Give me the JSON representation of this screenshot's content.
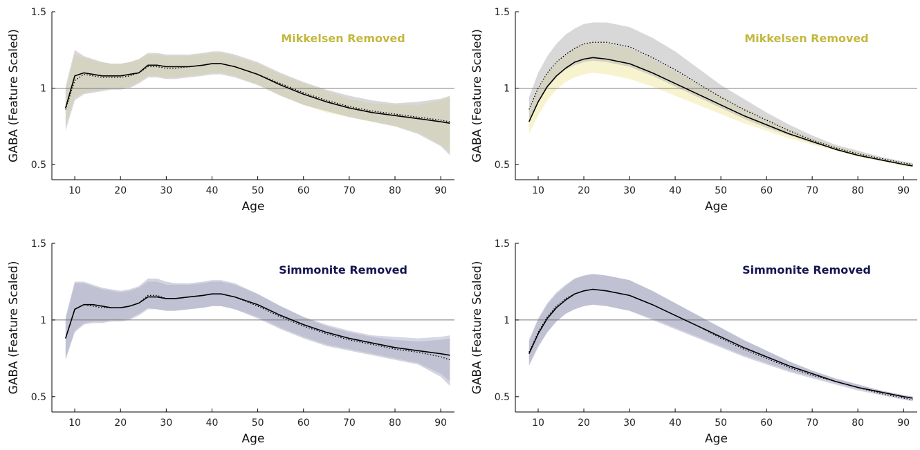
{
  "chart_data": [
    {
      "type": "line",
      "annotation": "Mikkelsen Removed",
      "annotation_color": "#c2b83e",
      "band_colors": [
        "#f5eeba",
        "#b8b8b8"
      ],
      "xlabel": "Age",
      "ylabel": "GABA (Feature Scaled)",
      "xlim": [
        5,
        93
      ],
      "ylim": [
        0.4,
        1.5
      ],
      "xticks": [
        "10",
        "20",
        "30",
        "40",
        "50",
        "60",
        "70",
        "80",
        "90"
      ],
      "yticks": [
        "0.5",
        "1",
        "1.5"
      ],
      "reference_line": 1,
      "x": [
        8,
        10,
        12,
        14,
        16,
        18,
        20,
        22,
        24,
        26,
        28,
        30,
        32,
        35,
        38,
        40,
        42,
        45,
        50,
        55,
        60,
        65,
        70,
        75,
        80,
        85,
        90,
        92
      ],
      "series": [
        {
          "style": "solid",
          "values": [
            0.87,
            1.08,
            1.1,
            1.09,
            1.08,
            1.08,
            1.08,
            1.09,
            1.1,
            1.15,
            1.15,
            1.14,
            1.14,
            1.14,
            1.15,
            1.16,
            1.16,
            1.14,
            1.09,
            1.02,
            0.96,
            0.91,
            0.87,
            0.84,
            0.82,
            0.8,
            0.78,
            0.77
          ],
          "lower": [
            0.75,
            0.94,
            0.97,
            0.98,
            0.99,
            1.0,
            1.0,
            1.01,
            1.04,
            1.08,
            1.08,
            1.07,
            1.07,
            1.08,
            1.09,
            1.1,
            1.1,
            1.08,
            1.02,
            0.95,
            0.89,
            0.84,
            0.81,
            0.78,
            0.75,
            0.71,
            0.63,
            0.58
          ],
          "upper": [
            0.98,
            1.22,
            1.2,
            1.18,
            1.17,
            1.16,
            1.16,
            1.17,
            1.19,
            1.22,
            1.22,
            1.21,
            1.21,
            1.21,
            1.22,
            1.23,
            1.23,
            1.21,
            1.16,
            1.09,
            1.03,
            0.98,
            0.93,
            0.9,
            0.89,
            0.89,
            0.92,
            0.94
          ]
        },
        {
          "style": "dotted",
          "values": [
            0.86,
            1.05,
            1.09,
            1.08,
            1.07,
            1.07,
            1.07,
            1.08,
            1.1,
            1.14,
            1.14,
            1.13,
            1.13,
            1.14,
            1.15,
            1.16,
            1.16,
            1.14,
            1.09,
            1.03,
            0.97,
            0.92,
            0.88,
            0.85,
            0.83,
            0.81,
            0.79,
            0.78
          ],
          "lower": [
            0.72,
            0.92,
            0.96,
            0.97,
            0.98,
            0.99,
            0.99,
            1.0,
            1.03,
            1.07,
            1.07,
            1.06,
            1.06,
            1.07,
            1.08,
            1.09,
            1.09,
            1.07,
            1.02,
            0.95,
            0.89,
            0.85,
            0.81,
            0.78,
            0.75,
            0.7,
            0.62,
            0.56
          ],
          "upper": [
            1.01,
            1.25,
            1.21,
            1.19,
            1.17,
            1.16,
            1.16,
            1.17,
            1.19,
            1.23,
            1.23,
            1.22,
            1.22,
            1.22,
            1.23,
            1.24,
            1.24,
            1.22,
            1.17,
            1.1,
            1.04,
            0.99,
            0.95,
            0.92,
            0.9,
            0.91,
            0.93,
            0.95
          ]
        }
      ]
    },
    {
      "type": "line",
      "annotation": "Mikkelsen Removed",
      "annotation_color": "#c2b83e",
      "band_colors": [
        "#f5eeba",
        "#b8b8b8"
      ],
      "xlabel": "Age",
      "ylabel": "GABA (Feature Scaled)",
      "xlim": [
        5,
        93
      ],
      "ylim": [
        0.4,
        1.5
      ],
      "xticks": [
        "10",
        "20",
        "30",
        "40",
        "50",
        "60",
        "70",
        "80",
        "90"
      ],
      "yticks": [
        "0.5",
        "1",
        "1.5"
      ],
      "reference_line": 1,
      "x": [
        8,
        10,
        12,
        14,
        16,
        18,
        20,
        22,
        25,
        30,
        35,
        40,
        45,
        50,
        55,
        60,
        65,
        70,
        75,
        80,
        85,
        90,
        92
      ],
      "series": [
        {
          "style": "solid",
          "values": [
            0.78,
            0.91,
            1.01,
            1.08,
            1.13,
            1.17,
            1.19,
            1.2,
            1.19,
            1.16,
            1.1,
            1.03,
            0.96,
            0.89,
            0.82,
            0.76,
            0.7,
            0.65,
            0.6,
            0.56,
            0.53,
            0.5,
            0.49
          ],
          "lower": [
            0.7,
            0.82,
            0.92,
            0.99,
            1.04,
            1.07,
            1.09,
            1.1,
            1.09,
            1.06,
            1.01,
            0.95,
            0.89,
            0.83,
            0.77,
            0.72,
            0.67,
            0.63,
            0.59,
            0.55,
            0.52,
            0.49,
            0.48
          ],
          "upper": [
            0.86,
            1.0,
            1.1,
            1.17,
            1.22,
            1.27,
            1.29,
            1.3,
            1.29,
            1.26,
            1.19,
            1.11,
            1.03,
            0.95,
            0.87,
            0.8,
            0.73,
            0.67,
            0.62,
            0.58,
            0.54,
            0.51,
            0.5
          ]
        },
        {
          "style": "dotted",
          "values": [
            0.86,
            1.0,
            1.1,
            1.17,
            1.22,
            1.26,
            1.29,
            1.3,
            1.3,
            1.27,
            1.2,
            1.12,
            1.03,
            0.94,
            0.86,
            0.79,
            0.72,
            0.66,
            0.61,
            0.57,
            0.54,
            0.51,
            0.5
          ],
          "lower": [
            0.78,
            0.91,
            1.0,
            1.07,
            1.12,
            1.15,
            1.17,
            1.18,
            1.17,
            1.14,
            1.08,
            1.01,
            0.94,
            0.87,
            0.8,
            0.74,
            0.69,
            0.64,
            0.6,
            0.56,
            0.53,
            0.5,
            0.49
          ],
          "upper": [
            0.94,
            1.1,
            1.21,
            1.29,
            1.35,
            1.39,
            1.42,
            1.43,
            1.43,
            1.4,
            1.33,
            1.24,
            1.13,
            1.02,
            0.93,
            0.84,
            0.76,
            0.69,
            0.63,
            0.59,
            0.55,
            0.52,
            0.51
          ]
        }
      ]
    },
    {
      "type": "line",
      "annotation": "Simmonite Removed",
      "annotation_color": "#151550",
      "band_colors": [
        "#c4c4d8",
        "#b0b0c6"
      ],
      "xlabel": "Age",
      "ylabel": "GABA (Feature Scaled)",
      "xlim": [
        5,
        93
      ],
      "ylim": [
        0.4,
        1.5
      ],
      "xticks": [
        "10",
        "20",
        "30",
        "40",
        "50",
        "60",
        "70",
        "80",
        "90"
      ],
      "yticks": [
        "0.5",
        "1",
        "1.5"
      ],
      "reference_line": 1,
      "x": [
        8,
        10,
        12,
        14,
        16,
        18,
        20,
        22,
        24,
        26,
        28,
        30,
        32,
        35,
        38,
        40,
        42,
        45,
        50,
        55,
        60,
        65,
        70,
        75,
        80,
        85,
        90,
        92
      ],
      "series": [
        {
          "style": "solid",
          "values": [
            0.88,
            1.07,
            1.1,
            1.1,
            1.09,
            1.08,
            1.08,
            1.09,
            1.11,
            1.15,
            1.15,
            1.14,
            1.14,
            1.15,
            1.16,
            1.17,
            1.17,
            1.15,
            1.1,
            1.03,
            0.97,
            0.92,
            0.88,
            0.85,
            0.82,
            0.8,
            0.78,
            0.77
          ],
          "lower": [
            0.75,
            0.93,
            0.98,
            0.99,
            0.99,
            1.0,
            1.0,
            1.01,
            1.04,
            1.08,
            1.07,
            1.06,
            1.06,
            1.07,
            1.08,
            1.09,
            1.09,
            1.07,
            1.02,
            0.95,
            0.89,
            0.84,
            0.81,
            0.78,
            0.75,
            0.72,
            0.65,
            0.6
          ],
          "upper": [
            1.0,
            1.24,
            1.24,
            1.22,
            1.2,
            1.19,
            1.18,
            1.19,
            1.21,
            1.25,
            1.25,
            1.23,
            1.23,
            1.23,
            1.24,
            1.25,
            1.25,
            1.23,
            1.17,
            1.09,
            1.02,
            0.97,
            0.93,
            0.9,
            0.89,
            0.88,
            0.89,
            0.9
          ]
        },
        {
          "style": "dotted",
          "values": [
            0.88,
            1.07,
            1.1,
            1.09,
            1.08,
            1.08,
            1.08,
            1.09,
            1.11,
            1.16,
            1.16,
            1.14,
            1.14,
            1.15,
            1.16,
            1.17,
            1.17,
            1.15,
            1.09,
            1.02,
            0.96,
            0.91,
            0.87,
            0.84,
            0.81,
            0.79,
            0.76,
            0.74
          ],
          "lower": [
            0.74,
            0.92,
            0.97,
            0.98,
            0.98,
            0.99,
            0.99,
            1.0,
            1.03,
            1.07,
            1.07,
            1.06,
            1.06,
            1.07,
            1.08,
            1.09,
            1.09,
            1.07,
            1.01,
            0.94,
            0.88,
            0.83,
            0.8,
            0.77,
            0.74,
            0.71,
            0.63,
            0.57
          ],
          "upper": [
            1.02,
            1.25,
            1.25,
            1.23,
            1.21,
            1.2,
            1.19,
            1.2,
            1.22,
            1.27,
            1.27,
            1.25,
            1.24,
            1.24,
            1.25,
            1.26,
            1.26,
            1.24,
            1.17,
            1.09,
            1.02,
            0.96,
            0.92,
            0.89,
            0.87,
            0.86,
            0.87,
            0.88
          ]
        }
      ]
    },
    {
      "type": "line",
      "annotation": "Simmonite Removed",
      "annotation_color": "#151550",
      "band_colors": [
        "#c4c4d8",
        "#b0b0c6"
      ],
      "xlabel": "Age",
      "ylabel": "GABA (Feature Scaled)",
      "xlim": [
        5,
        93
      ],
      "ylim": [
        0.4,
        1.5
      ],
      "xticks": [
        "10",
        "20",
        "30",
        "40",
        "50",
        "60",
        "70",
        "80",
        "90"
      ],
      "yticks": [
        "0.5",
        "1",
        "1.5"
      ],
      "reference_line": 1,
      "x": [
        8,
        10,
        12,
        14,
        16,
        18,
        20,
        22,
        25,
        30,
        35,
        40,
        45,
        50,
        55,
        60,
        65,
        70,
        75,
        80,
        85,
        90,
        92
      ],
      "series": [
        {
          "style": "solid",
          "values": [
            0.78,
            0.91,
            1.01,
            1.08,
            1.13,
            1.17,
            1.19,
            1.2,
            1.19,
            1.16,
            1.1,
            1.03,
            0.96,
            0.89,
            0.82,
            0.76,
            0.7,
            0.65,
            0.6,
            0.56,
            0.53,
            0.5,
            0.49
          ],
          "lower": [
            0.7,
            0.82,
            0.92,
            0.99,
            1.04,
            1.07,
            1.09,
            1.1,
            1.09,
            1.06,
            1.01,
            0.95,
            0.89,
            0.83,
            0.77,
            0.72,
            0.67,
            0.63,
            0.59,
            0.55,
            0.52,
            0.49,
            0.48
          ],
          "upper": [
            0.86,
            1.0,
            1.1,
            1.17,
            1.22,
            1.27,
            1.29,
            1.3,
            1.29,
            1.26,
            1.19,
            1.11,
            1.03,
            0.95,
            0.87,
            0.8,
            0.73,
            0.67,
            0.62,
            0.58,
            0.54,
            0.51,
            0.5
          ]
        },
        {
          "style": "dotted",
          "values": [
            0.79,
            0.92,
            1.02,
            1.09,
            1.14,
            1.17,
            1.19,
            1.2,
            1.19,
            1.16,
            1.1,
            1.03,
            0.96,
            0.88,
            0.81,
            0.75,
            0.69,
            0.64,
            0.6,
            0.56,
            0.52,
            0.49,
            0.48
          ],
          "lower": [
            0.71,
            0.83,
            0.92,
            0.99,
            1.04,
            1.07,
            1.09,
            1.1,
            1.09,
            1.06,
            1.0,
            0.94,
            0.88,
            0.82,
            0.76,
            0.71,
            0.66,
            0.62,
            0.58,
            0.54,
            0.51,
            0.48,
            0.47
          ],
          "upper": [
            0.87,
            1.01,
            1.11,
            1.18,
            1.23,
            1.27,
            1.29,
            1.3,
            1.29,
            1.26,
            1.19,
            1.11,
            1.03,
            0.95,
            0.87,
            0.8,
            0.73,
            0.67,
            0.62,
            0.58,
            0.54,
            0.51,
            0.5
          ]
        }
      ]
    }
  ]
}
